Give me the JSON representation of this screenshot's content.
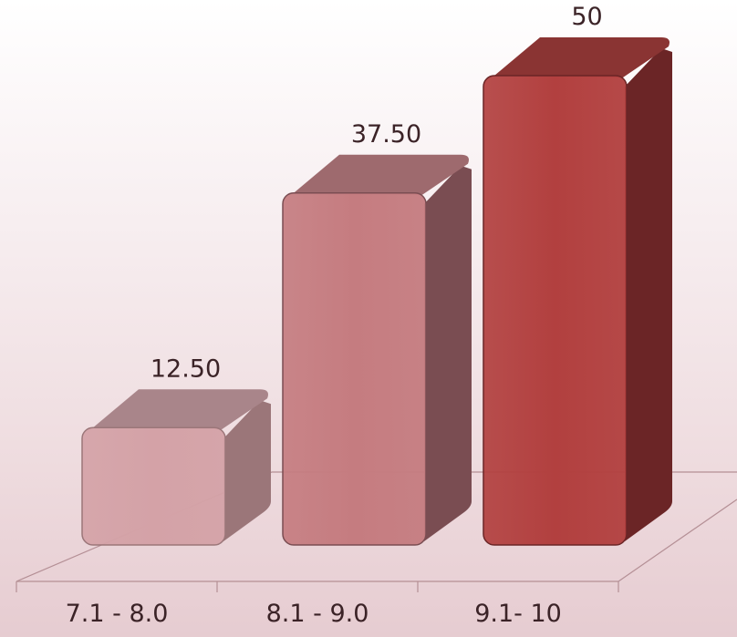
{
  "chart_data": {
    "type": "bar",
    "categories": [
      "7.1 - 8.0",
      "8.1 - 9.0",
      "9.1- 10"
    ],
    "values": [
      12.5,
      37.5,
      50
    ],
    "data_labels": [
      "12.50",
      "37.50",
      "50"
    ],
    "title": "",
    "xlabel": "",
    "ylabel": "",
    "ylim": [
      0,
      55
    ],
    "grid": false,
    "legend": "none",
    "colors": {
      "front": [
        "#d4a2a7",
        "#c57c80",
        "#b2403f"
      ],
      "side": [
        "#9b7679",
        "#7a4d52",
        "#6b2526"
      ],
      "top": [
        "#a9858a",
        "#9e6a6e",
        "#8a3433"
      ]
    }
  }
}
